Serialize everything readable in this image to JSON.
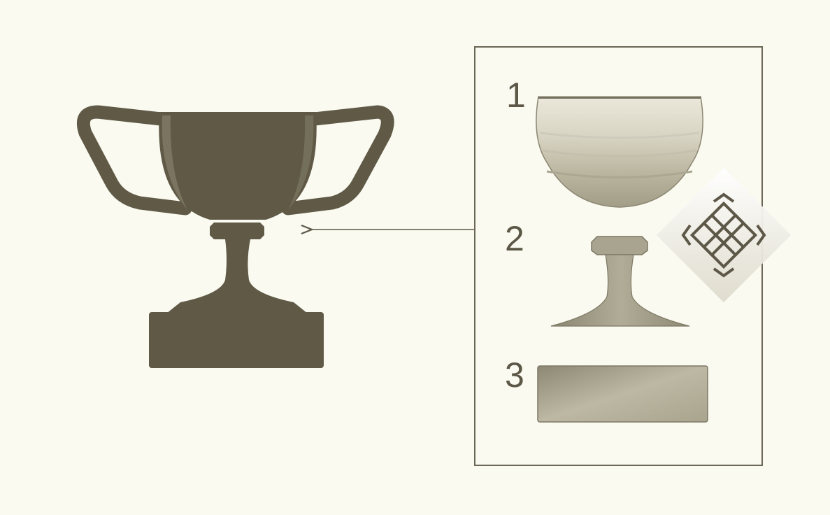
{
  "parts": [
    {
      "number": "1",
      "name": "cup bowl"
    },
    {
      "number": "2",
      "name": "stem"
    },
    {
      "number": "3",
      "name": "base"
    }
  ],
  "colors": {
    "background": "#fafaf1",
    "ink": "#5c5746",
    "trophy": "#5f5946",
    "panel_border": "#6c6757",
    "stipple_light": "#e2dfd0",
    "stipple_dark": "#a39e89"
  },
  "icons": {
    "trophy": "trophy-icon",
    "panel_badge": "diamond-lattice-icon",
    "arrow": "arrow-left-icon"
  }
}
